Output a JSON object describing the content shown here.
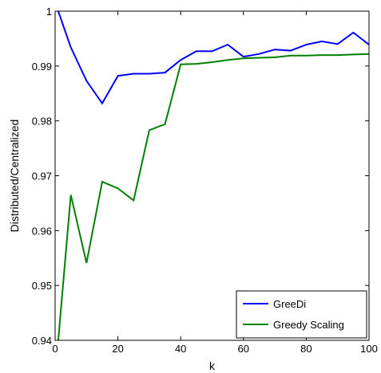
{
  "chart_data": {
    "type": "line",
    "title": "",
    "xlabel": "k",
    "ylabel": "Distributed/Centralized",
    "xlim": [
      0,
      100
    ],
    "ylim": [
      0.94,
      1.0
    ],
    "x_ticks": [
      0,
      20,
      40,
      60,
      80,
      100
    ],
    "x_tick_labels": [
      "0",
      "20",
      "40",
      "60",
      "80",
      "100"
    ],
    "y_ticks": [
      0.94,
      0.95,
      0.96,
      0.97,
      0.98,
      0.99,
      1.0
    ],
    "y_tick_labels": [
      "0.94",
      "0.95",
      "0.96",
      "0.97",
      "0.98",
      "0.99",
      "1"
    ],
    "grid": false,
    "legend_position": "bottom-right",
    "series": [
      {
        "name": "GreeDi",
        "color": "#0000ff",
        "x": [
          1,
          5,
          10,
          15,
          20,
          25,
          30,
          35,
          40,
          45,
          50,
          55,
          60,
          65,
          70,
          75,
          80,
          85,
          90,
          95,
          100
        ],
        "y": [
          1.0,
          0.9934,
          0.9873,
          0.9832,
          0.9882,
          0.9886,
          0.9886,
          0.9888,
          0.9911,
          0.9927,
          0.9927,
          0.9939,
          0.9917,
          0.9922,
          0.993,
          0.9928,
          0.9939,
          0.9945,
          0.994,
          0.9961,
          0.9939
        ]
      },
      {
        "name": "Greedy Scaling",
        "color": "#008000",
        "x": [
          1,
          5,
          10,
          15,
          20,
          25,
          30,
          35,
          40,
          45,
          50,
          55,
          60,
          65,
          70,
          75,
          80,
          85,
          90,
          95,
          100
        ],
        "y": [
          0.94,
          0.9665,
          0.9541,
          0.9689,
          0.9677,
          0.9655,
          0.9783,
          0.9794,
          0.9903,
          0.9904,
          0.9907,
          0.9911,
          0.9914,
          0.9915,
          0.9916,
          0.9919,
          0.9919,
          0.992,
          0.992,
          0.9921,
          0.9922
        ]
      }
    ]
  }
}
